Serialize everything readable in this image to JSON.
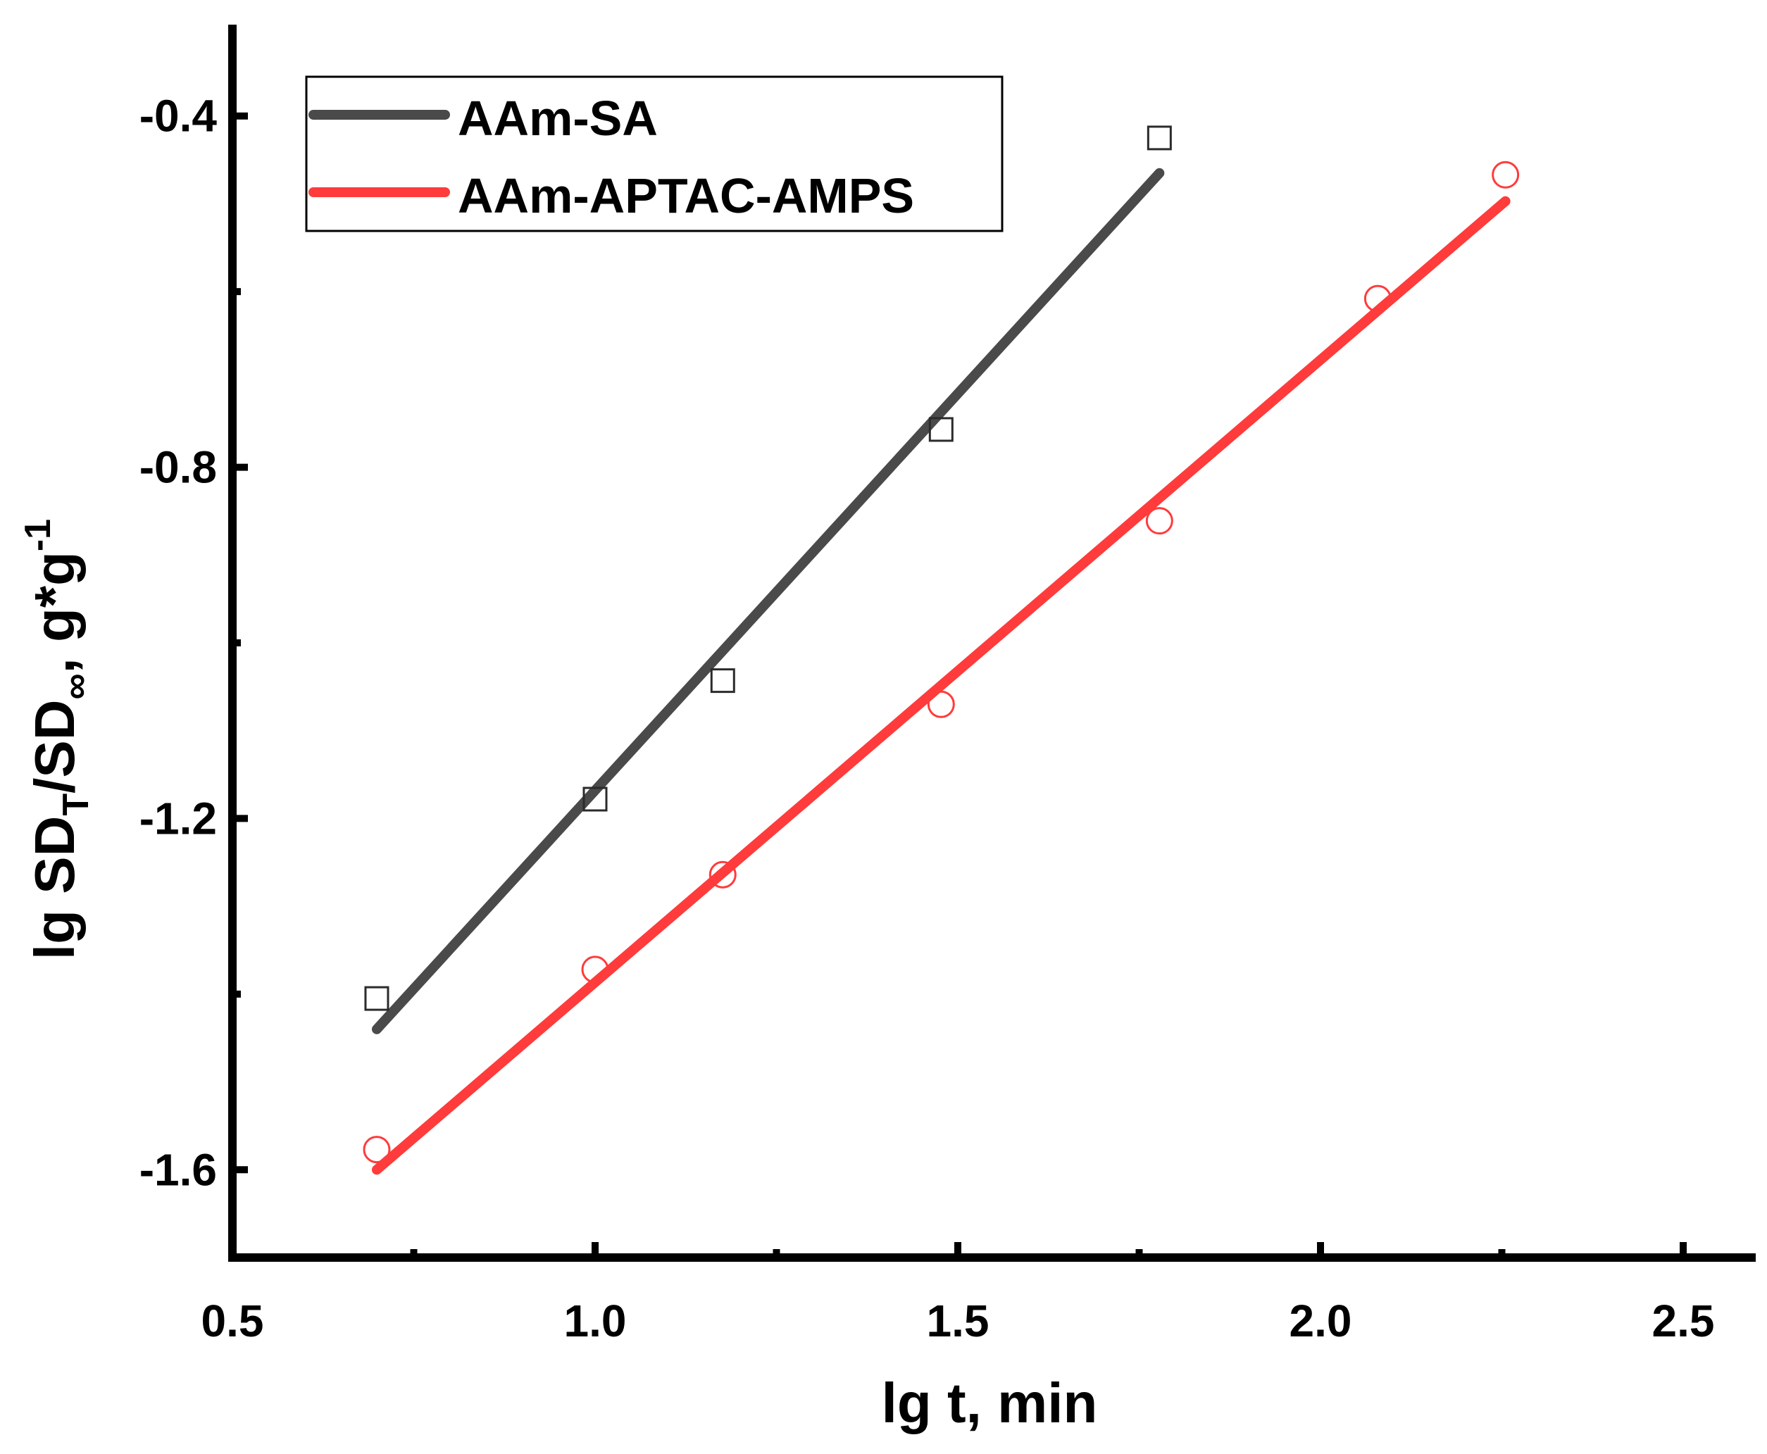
{
  "chart_data": {
    "type": "scatter",
    "title": "",
    "xlabel": "lg t, min",
    "ylabel": {
      "prefix": "lg SD",
      "sub1": "T",
      "middle": "/SD",
      "sub2": "∞",
      "suffix": ", g*g",
      "sup": "-1"
    },
    "xlim": [
      0.5,
      2.6
    ],
    "ylim": [
      -1.7,
      -0.3
    ],
    "x_ticks": [
      {
        "value": 0.5,
        "label": "0.5"
      },
      {
        "value": 1.0,
        "label": "1.0"
      },
      {
        "value": 1.5,
        "label": "1.5"
      },
      {
        "value": 2.0,
        "label": "2.0"
      },
      {
        "value": 2.5,
        "label": "2.5"
      }
    ],
    "x_minor_ticks": [
      0.75,
      1.25,
      1.75,
      2.25
    ],
    "y_ticks": [
      {
        "value": -0.4,
        "label": "-0.4"
      },
      {
        "value": -0.8,
        "label": "-0.8"
      },
      {
        "value": -1.2,
        "label": "-1.2"
      },
      {
        "value": -1.6,
        "label": "-1.6"
      }
    ],
    "y_minor_ticks": [
      -0.6,
      -1.0,
      -1.4
    ],
    "grid": false,
    "legend_position": "top-left",
    "series": [
      {
        "name": "AAm-SA",
        "color": "#4a4a4a",
        "marker": "square",
        "x": [
          0.699,
          1.0,
          1.176,
          1.477,
          1.778
        ],
        "y": [
          -1.405,
          -1.178,
          -1.043,
          -0.757,
          -0.425
        ],
        "fit": {
          "x": [
            0.699,
            1.778
          ],
          "y": [
            -1.44,
            -0.465
          ]
        }
      },
      {
        "name": "AAm-APTAC-AMPS",
        "color": "#ff3b3b",
        "marker": "circle",
        "x": [
          0.699,
          1.0,
          1.176,
          1.477,
          1.778,
          2.079,
          2.255
        ],
        "y": [
          -1.577,
          -1.372,
          -1.264,
          -1.07,
          -0.861,
          -0.608,
          -0.467
        ],
        "fit": {
          "x": [
            0.699,
            2.255
          ],
          "y": [
            -1.6,
            -0.497
          ]
        }
      }
    ]
  }
}
